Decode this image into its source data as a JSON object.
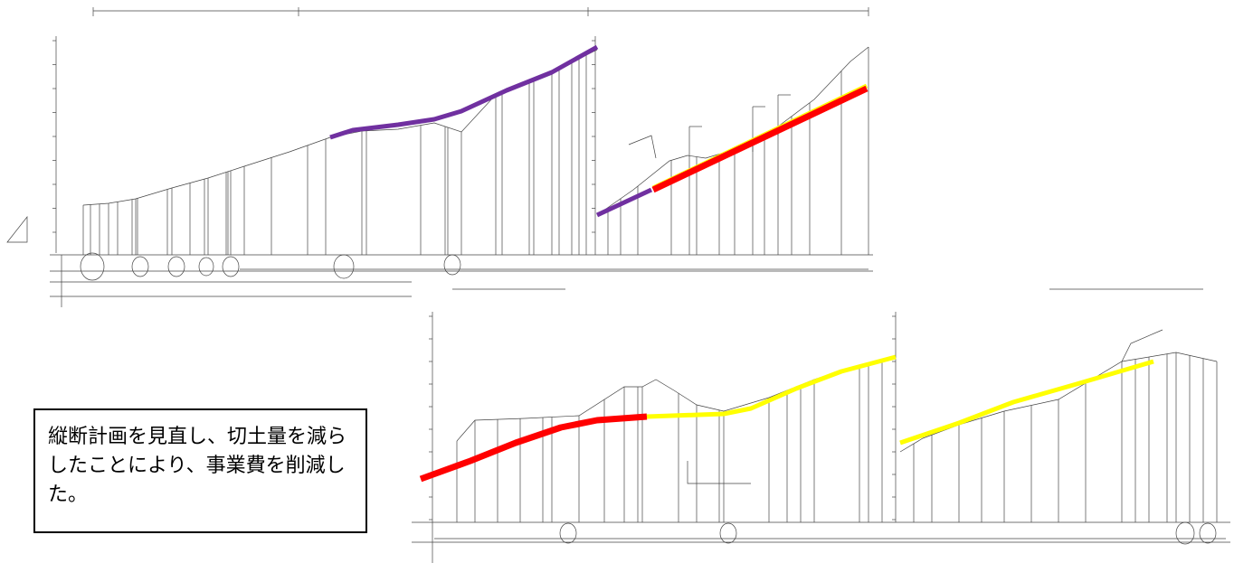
{
  "note": {
    "text": "縦断計画を見直し、切土量を減らしたことにより、事業費を削減した。"
  },
  "colors": {
    "purple_line": "#7030a0",
    "red_line": "#ff0000",
    "yellow_line": "#ffff00",
    "drawing_line": "#333333"
  },
  "legend": [
    {
      "color_key": "purple_line"
    },
    {
      "color_key": "red_line"
    },
    {
      "color_key": "yellow_line"
    }
  ]
}
